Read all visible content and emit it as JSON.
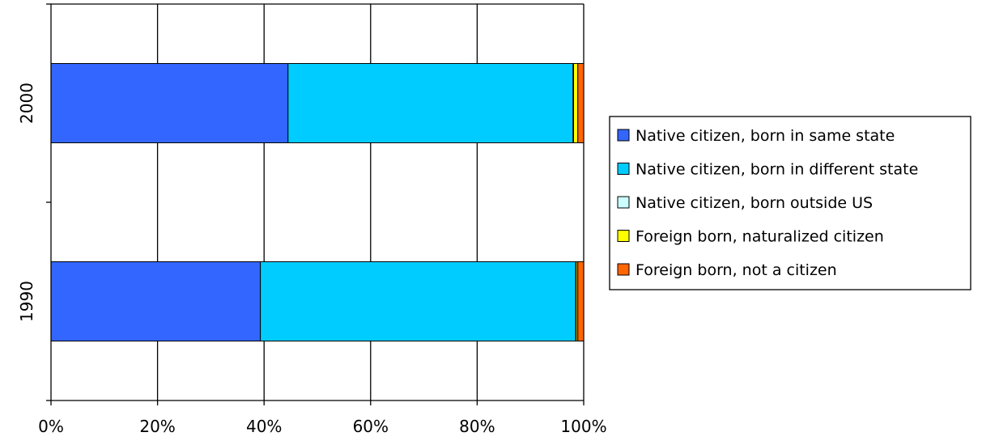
{
  "chart_data": {
    "type": "bar",
    "orientation": "horizontal",
    "stacking": "percent",
    "categories": [
      "1990",
      "2000"
    ],
    "series": [
      {
        "name": "Native citizen, born in same state",
        "color": "#3366ff",
        "values": [
          39.3,
          44.5
        ]
      },
      {
        "name": "Native citizen, born in different state",
        "color": "#00ccff",
        "values": [
          59.2,
          53.5
        ]
      },
      {
        "name": "Native citizen, born outside US",
        "color": "#ccffff",
        "values": [
          0.1,
          0.1
        ]
      },
      {
        "name": "Foreign born, naturalized citizen",
        "color": "#ffff00",
        "values": [
          0.3,
          0.8
        ]
      },
      {
        "name": "Foreign born, not a citizen",
        "color": "#ff6600",
        "values": [
          1.1,
          1.1
        ]
      }
    ],
    "xlim": [
      0,
      100
    ],
    "x_ticks": [
      "0%",
      "20%",
      "40%",
      "60%",
      "80%",
      "100%"
    ],
    "grid": true,
    "legend_position": "right"
  }
}
